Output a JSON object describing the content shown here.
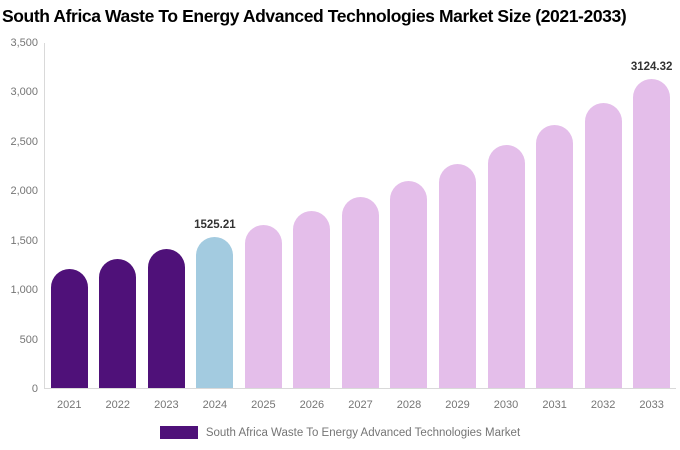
{
  "chart_data": {
    "type": "bar",
    "title": "South Africa Waste To Energy Advanced Technologies Market Size (2021-2033)",
    "categories": [
      "2021",
      "2022",
      "2023",
      "2024",
      "2025",
      "2026",
      "2027",
      "2028",
      "2029",
      "2030",
      "2031",
      "2032",
      "2033"
    ],
    "values": [
      1201.2,
      1300.7,
      1408.6,
      1525.21,
      1651.7,
      1788.6,
      1937.0,
      2097.5,
      2271.4,
      2459.7,
      2663.7,
      2884.6,
      3124.32
    ],
    "data_labels": {
      "2024": "1525.21",
      "2033": "3124.32"
    },
    "yticks": [
      "3,500",
      "3,000",
      "2,500",
      "2,000",
      "1,500",
      "1,000",
      "500",
      "0"
    ],
    "ylim": [
      0,
      3500
    ],
    "xlabel": "",
    "ylabel": "",
    "grid": false,
    "legend": {
      "label": "South Africa Waste To Energy Advanced Technologies Market",
      "position": "bottom"
    },
    "colors": {
      "historical": "#4F1179",
      "current": "#A3CBE0",
      "forecast": "#E4BEEA",
      "axis_line": "#d9d9d9",
      "tick_text": "#757575",
      "value_text": "#333333"
    },
    "bar_colors": [
      "historical",
      "historical",
      "historical",
      "current",
      "forecast",
      "forecast",
      "forecast",
      "forecast",
      "forecast",
      "forecast",
      "forecast",
      "forecast",
      "forecast"
    ]
  }
}
